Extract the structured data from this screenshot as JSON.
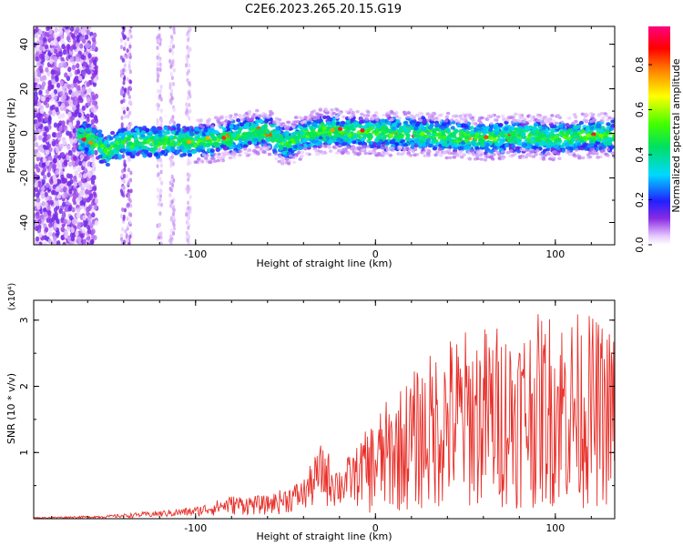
{
  "title": "C2E6.2023.265.20.15.G19",
  "colors": {
    "snr_line": "#e8302a",
    "axis": "#000000",
    "background": "#ffffff"
  },
  "chart_data": [
    {
      "type": "heatmap",
      "xlabel": "Height of straight line (km)",
      "ylabel": "Frequency (Hz)",
      "xlim": [
        -190,
        133
      ],
      "ylim": [
        -50,
        48
      ],
      "x_ticks": [
        -100,
        0,
        100
      ],
      "y_ticks": [
        -40,
        -20,
        0,
        20,
        40
      ],
      "colorbar": {
        "label": "Normalized spectral amplitude",
        "range": [
          0,
          0.97
        ],
        "ticks": [
          "0.0",
          "0.2",
          "0.4",
          "0.6",
          "0.8"
        ]
      },
      "ridge": {
        "description_points_x": [
          -160,
          -150,
          -140,
          -130,
          -120,
          -110,
          -100,
          -90,
          -80,
          -70,
          -60,
          -50,
          -40,
          -30,
          -20,
          0,
          20,
          40,
          60,
          80,
          100,
          120,
          133
        ],
        "description_points_y": [
          -2,
          -8,
          -4,
          -4,
          -4,
          -3,
          -4,
          -3,
          -2,
          0,
          1,
          -5,
          -1,
          1,
          1,
          0,
          0,
          -1,
          -2,
          -1,
          -2,
          -1,
          -1
        ]
      },
      "noise_region_x": [
        -190,
        -155
      ]
    },
    {
      "type": "line",
      "xlabel": "Height of straight line (km)",
      "ylabel": "SNR (10 * v/v)",
      "y_multiplier": "(x10⁴)",
      "xlim": [
        -190,
        133
      ],
      "ylim": [
        0,
        3.3
      ],
      "x_ticks": [
        -100,
        0,
        100
      ],
      "y_ticks": [
        1,
        2,
        3
      ],
      "envelope_x": [
        -190,
        -150,
        -120,
        -100,
        -80,
        -60,
        -40,
        -30,
        -20,
        -10,
        0,
        20,
        40,
        60,
        80,
        100,
        120,
        133
      ],
      "envelope_max": [
        0.02,
        0.05,
        0.12,
        0.18,
        0.35,
        0.35,
        0.6,
        1.15,
        0.8,
        1.1,
        1.6,
        2.2,
        2.8,
        2.95,
        3.0,
        3.2,
        3.1,
        2.9
      ]
    }
  ]
}
